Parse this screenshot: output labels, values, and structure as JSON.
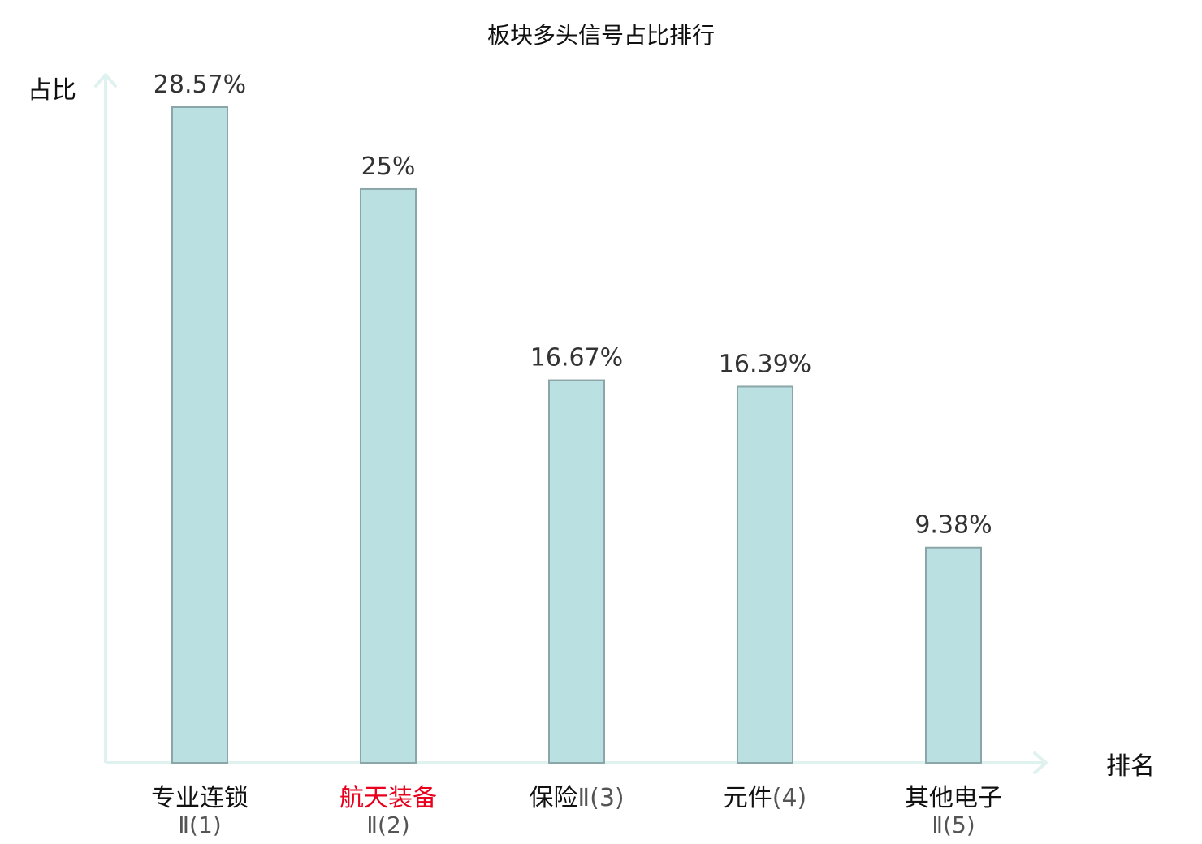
{
  "chart_data": {
    "type": "bar",
    "title": "板块多头信号占比排行",
    "xlabel": "排名",
    "ylabel": "占比",
    "categories": [
      "专业连锁Ⅱ(1)",
      "航天装备Ⅱ(2)",
      "保险Ⅱ(3)",
      "元件(4)",
      "其他电子Ⅱ(5)"
    ],
    "category_lines": [
      {
        "main": "专业连锁",
        "sub": "Ⅱ(1)",
        "rank": ""
      },
      {
        "main": "航天装备",
        "sub": "Ⅱ(2)",
        "rank": ""
      },
      {
        "main": "保险",
        "sub": "Ⅱ",
        "rank": "(3)"
      },
      {
        "main": "元件",
        "sub": "",
        "rank": "(4)"
      },
      {
        "main": "其他电子",
        "sub": "Ⅱ(5)",
        "rank": ""
      }
    ],
    "values": [
      28.57,
      25,
      16.67,
      16.39,
      9.38
    ],
    "value_labels": [
      "28.57%",
      "25%",
      "16.67%",
      "16.39%",
      "9.38%"
    ],
    "highlight_index": 1,
    "ylim": [
      0,
      30
    ],
    "grid": false,
    "legend": "none",
    "colors": {
      "bar_fill": "#bbe0e2",
      "bar_stroke": "#8aa6a8",
      "axis": "#e0f2ef",
      "highlight_text": "#e8001c",
      "category_text": "#111111",
      "category_sub_text": "#555555"
    }
  }
}
